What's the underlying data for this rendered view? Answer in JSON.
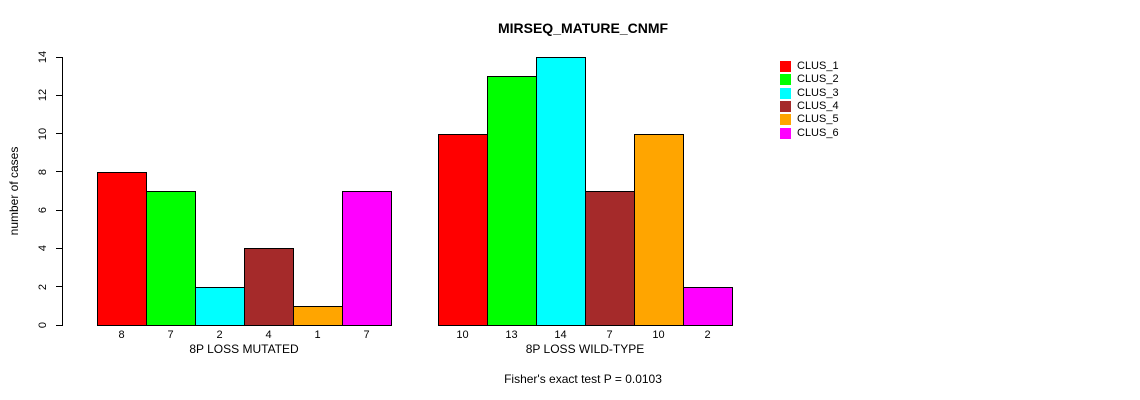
{
  "chart_data": {
    "type": "bar",
    "title": "MIRSEQ_MATURE_CNMF",
    "ylabel": "number of cases",
    "ylim": [
      0,
      14
    ],
    "yticks": [
      0,
      2,
      4,
      6,
      8,
      10,
      12,
      14
    ],
    "grid": false,
    "legend_position": "right",
    "groups": [
      {
        "label": "8P LOSS MUTATED",
        "bar_labels": [
          "8",
          "7",
          "2",
          "4",
          "1",
          "7"
        ],
        "values": [
          8,
          7,
          2,
          4,
          1,
          7
        ]
      },
      {
        "label": "8P LOSS WILD-TYPE",
        "bar_labels": [
          "10",
          "13",
          "14",
          "7",
          "10",
          "2"
        ],
        "values": [
          10,
          13,
          14,
          7,
          10,
          2
        ]
      }
    ],
    "series_colors": [
      "#FF0000",
      "#00FF00",
      "#00FFFF",
      "#A52A2A",
      "#FFA500",
      "#FF00FF"
    ],
    "legend": [
      {
        "label": "CLUS_1",
        "color": "#FF0000"
      },
      {
        "label": "CLUS_2",
        "color": "#00FF00"
      },
      {
        "label": "CLUS_3",
        "color": "#00FFFF"
      },
      {
        "label": "CLUS_4",
        "color": "#A52A2A"
      },
      {
        "label": "CLUS_5",
        "color": "#FFA500"
      },
      {
        "label": "CLUS_6",
        "color": "#FF00FF"
      }
    ],
    "annotation": "Fisher's exact test P = 0.0103"
  }
}
